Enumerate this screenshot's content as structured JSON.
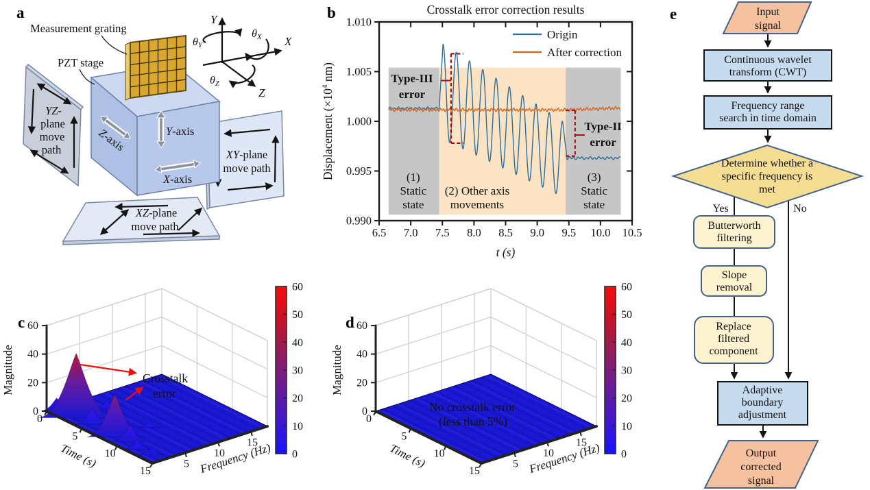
{
  "panel_labels": {
    "a": "a",
    "b": "b",
    "c": "c",
    "d": "d",
    "e": "e"
  },
  "colors": {
    "flow_blue": "#c7dbef",
    "flow_cream": "#fdf3d0",
    "flow_gold": "#f5dd94",
    "flow_para": "#f6c19e",
    "flow_border": "#44618c",
    "cube_front": "#b7c8ea",
    "cube_top": "#ccd9f0",
    "cube_left": "#aec0e4",
    "cube_edge": "#6d7fa8",
    "plane_gray": "#c9cedb",
    "plane_blue": "#dee7f5",
    "plane_light": "#e3eaf6",
    "plane_edge": "#78879f",
    "grating_gold": "#d9a72e",
    "grating_side": "#e7cc74",
    "grating_edge": "#5f4d12",
    "origin_line": "#2a6f9e",
    "correction_line": "#d2641f",
    "error_annotation": "#a51016",
    "region_gray": "#c6c6c6",
    "region_orange": "#fbe3c3",
    "surface_blue": "#1b18d4"
  },
  "panel_a": {
    "measurement_grating": "Measurement grating",
    "pzt_stage": "PZT stage",
    "triad": {
      "x": "X",
      "y": "Y",
      "z": "Z",
      "theta": "θ",
      "sub_x": "X",
      "sub_y": "Y",
      "sub_z": "Z"
    },
    "cube": {
      "z_it": "Z",
      "z_rest": "-axis",
      "y_it": "Y",
      "y_rest": "-axis",
      "x_it": "X",
      "x_rest": "-axis"
    },
    "yz_plane": {
      "l1_it": "YZ",
      "l1_rest": "-",
      "l2": "plane",
      "l3": "move",
      "l4": "path"
    },
    "xy_plane": {
      "l1_it": "XY",
      "l1_rest": "-plane",
      "l2": "move path"
    },
    "xz_plane": {
      "l1_it": "XZ",
      "l1_rest": "-plane",
      "l2": "move path"
    }
  },
  "flowchart": {
    "input": [
      "Input",
      "signal"
    ],
    "cwt": [
      "Continuous wavelet",
      "transform (CWT)"
    ],
    "freq_search": [
      "Frequency range",
      "search in time domain"
    ],
    "decision": [
      "Determine whether a",
      "specific frequency is",
      "met"
    ],
    "yes": "Yes",
    "no": "No",
    "butterworth": [
      "Butterworth",
      "filtering"
    ],
    "slope": [
      "Slope",
      "removal"
    ],
    "replace": [
      "Replace",
      "filtered",
      "component"
    ],
    "adaptive": [
      "Adaptive",
      "boundary",
      "adjustment"
    ],
    "output": [
      "Output",
      "corrected",
      "signal"
    ]
  },
  "chart_data": [
    {
      "panel": "b",
      "type": "line",
      "title": "Crosstalk error correction results",
      "xlabel": "t (s)",
      "ylabel": "Displacement (×10^4 nm)",
      "ylabel_parts": {
        "pre": "Displacement (×10",
        "sup": "4",
        "post": " nm)"
      },
      "xlim": [
        6.5,
        10.5
      ],
      "ylim": [
        0.99,
        1.01
      ],
      "xticks": [
        6.5,
        7.0,
        7.5,
        8.0,
        8.5,
        9.0,
        9.5,
        10.0,
        10.5
      ],
      "yticks": [
        0.99,
        0.995,
        1.0,
        1.005,
        1.01
      ],
      "legend": [
        {
          "label": "Origin",
          "color": "#2a6f9e"
        },
        {
          "label": "After correction",
          "color": "#d2641f"
        }
      ],
      "region_top": 1.0054,
      "region_bottom": 0.9906,
      "regions": [
        {
          "lines": [
            "(1)",
            "Static",
            "state"
          ],
          "x0": 6.65,
          "x1": 7.45,
          "color": "#c6c6c6",
          "label_x": 7.04
        },
        {
          "lines": [
            "(2) Other axis",
            "movements"
          ],
          "x0": 7.45,
          "x1": 9.45,
          "color": "#fbe3c3",
          "label_x": 8.05
        },
        {
          "lines": [
            "(3)",
            "Static",
            "state"
          ],
          "x0": 9.45,
          "x1": 10.32,
          "color": "#c6c6c6",
          "label_x": 9.9
        }
      ],
      "series": {
        "origin": {
          "name": "Origin",
          "color": "#2a6f9e",
          "static1": {
            "t0": 6.65,
            "t1": 7.45,
            "level": 1.0013
          },
          "osc": {
            "t0": 7.51,
            "t1": 9.4,
            "period": 0.21,
            "peak0": 1.0078,
            "peak1": 1.0,
            "trough0": 0.9982,
            "trough1": 0.9924
          },
          "static2": {
            "t0": 9.47,
            "t1": 10.32,
            "level": 0.9963
          }
        },
        "after": {
          "name": "After correction",
          "color": "#d2641f",
          "t0": 6.65,
          "t1": 10.32,
          "level": 1.00115
        }
      },
      "annotations": [
        {
          "lines": [
            "Type-III",
            "error"
          ],
          "color": "#a51016",
          "bx": 7.637,
          "top": 1.0068,
          "bottom": 0.9978,
          "ext": 18,
          "leader_t0": 7.48,
          "leader_v": 1.0041,
          "text_x": 7.02,
          "text_v": 1.00393
        },
        {
          "lines": [
            "Type-II",
            "error"
          ],
          "color": "#a51016",
          "bx": 9.598,
          "top": 1.0011,
          "bottom": 0.9965,
          "ext": -14,
          "leader_t0": 9.752,
          "leader_v": 0.99862,
          "text_x": 10.04,
          "text_v": 0.9991
        }
      ]
    },
    {
      "panel": "c",
      "type": "surface",
      "zlabel": "Magnitude",
      "xlabel": "Time (s)",
      "ylabel": "Frequency (Hz)",
      "zlim": [
        0,
        60
      ],
      "zticks": [
        0,
        20,
        40,
        60
      ],
      "time_range": [
        0,
        15
      ],
      "time_ticks": [
        0,
        5,
        10,
        15
      ],
      "freq_range": [
        0,
        17.5
      ],
      "freq_ticks": [
        5,
        10,
        15
      ],
      "surface_color": "#1b18d4",
      "peaks": [
        {
          "time": 2.8,
          "freq": 1.5,
          "magnitude": 45
        },
        {
          "time": 8.3,
          "freq": 1.5,
          "magnitude": 30
        },
        {
          "time": 0.5,
          "freq": 1.0,
          "magnitude": 9
        },
        {
          "time": 4.8,
          "freq": 1.8,
          "magnitude": 11
        },
        {
          "time": 6.0,
          "freq": 4.0,
          "magnitude": 6
        },
        {
          "time": 10.0,
          "freq": 2.0,
          "magnitude": 12
        },
        {
          "time": 11.8,
          "freq": 1.2,
          "magnitude": 7
        },
        {
          "time": 3.0,
          "freq": 6.0,
          "magnitude": 6
        },
        {
          "time": 8.6,
          "freq": 6.5,
          "magnitude": 4
        },
        {
          "time": 13.5,
          "freq": 1.5,
          "magnitude": 5
        }
      ],
      "annotation": {
        "lines": [
          "Crosstalk",
          "error"
        ],
        "text_color": "#ffffff",
        "arrow_color": "#e8100c"
      },
      "colorbar": {
        "min": 0,
        "max": 60,
        "ticks": [
          0,
          10,
          20,
          30,
          40,
          50,
          60
        ],
        "stops": [
          "#1414fa",
          "#3a17d6",
          "#5d1ba8",
          "#7f1d7a",
          "#a11a4c",
          "#d01020",
          "#fa0c0c"
        ]
      }
    },
    {
      "panel": "d",
      "type": "surface",
      "zlabel": "Magnitude",
      "xlabel": "Time (s)",
      "ylabel": "Frequency (Hz)",
      "zlim": [
        0,
        60
      ],
      "zticks": [
        0,
        20,
        40,
        60
      ],
      "time_range": [
        0,
        15
      ],
      "time_ticks": [
        0,
        5,
        10,
        15
      ],
      "freq_range": [
        0,
        17.5
      ],
      "freq_ticks": [
        5,
        10,
        15
      ],
      "surface_color": "#1b18d4",
      "peaks": [],
      "annotation": {
        "lines": [
          "No crosstalk error",
          "(less than 5%)"
        ],
        "text_color": "#ffffff",
        "arrow_color": "#e8100c"
      },
      "colorbar": {
        "min": 0,
        "max": 60,
        "ticks": [
          0,
          10,
          20,
          30,
          40,
          50,
          60
        ],
        "stops": [
          "#1414fa",
          "#3a17d6",
          "#5d1ba8",
          "#7f1d7a",
          "#a11a4c",
          "#d01020",
          "#fa0c0c"
        ]
      }
    }
  ]
}
